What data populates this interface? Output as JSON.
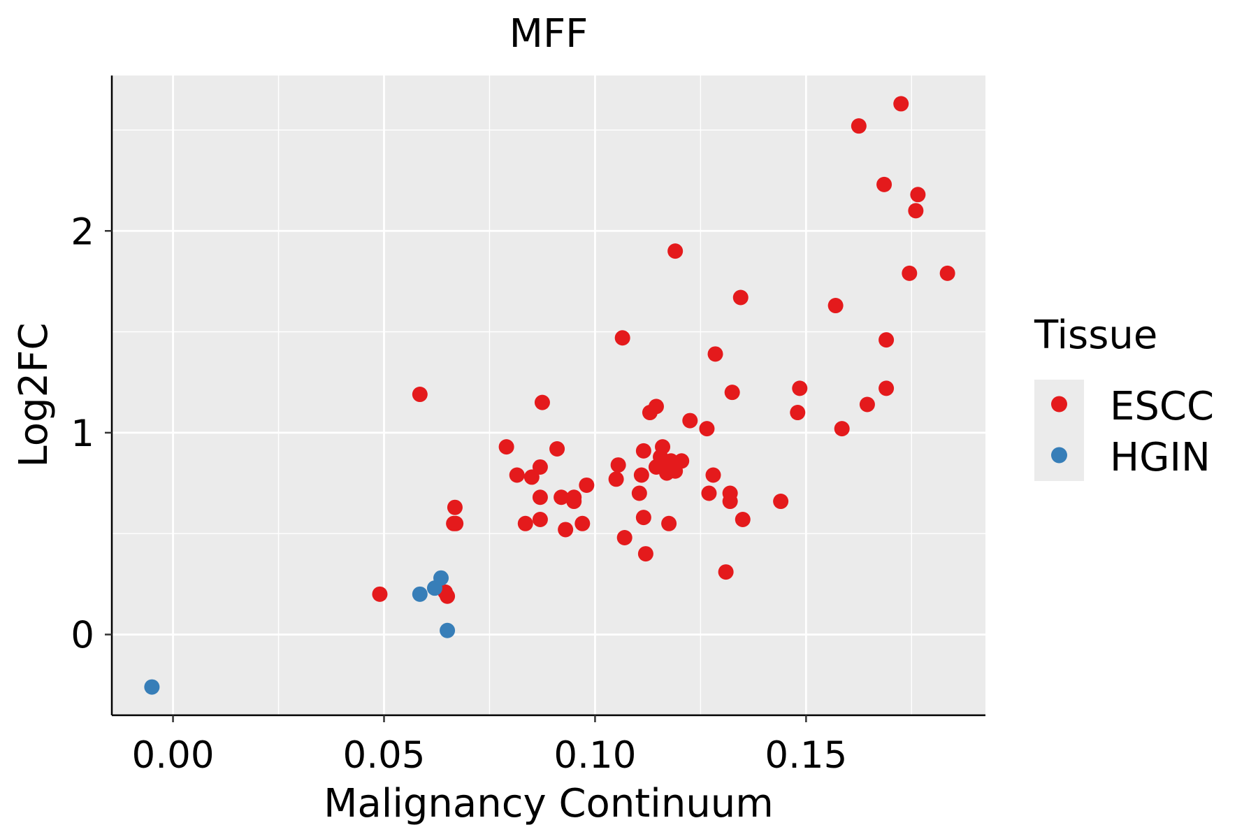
{
  "chart_data": {
    "type": "scatter",
    "title": "MFF",
    "xlabel": "Malignancy Continuum",
    "ylabel": "Log2FC",
    "xlim": [
      -0.0145,
      0.1925
    ],
    "ylim": [
      -0.4,
      2.77
    ],
    "x_ticks": [
      0.0,
      0.05,
      0.1,
      0.15
    ],
    "x_tick_labels": [
      "0.00",
      "0.05",
      "0.10",
      "0.15"
    ],
    "x_minor_ticks": [
      0.025,
      0.075,
      0.125,
      0.175
    ],
    "y_ticks": [
      0,
      1,
      2
    ],
    "y_tick_labels": [
      "0",
      "1",
      "2"
    ],
    "y_minor_ticks": [
      0.5,
      1.5,
      2.5
    ],
    "grid": true,
    "legend": {
      "title": "Tissue",
      "position": "right",
      "entries": [
        {
          "label": "ESCC",
          "color": "#e41a1c"
        },
        {
          "label": "HGIN",
          "color": "#377eb8"
        }
      ]
    },
    "colors": {
      "panel_background": "#ebebeb",
      "grid": "#ffffff",
      "axis": "#000000"
    },
    "series": [
      {
        "name": "ESCC",
        "color": "#e41a1c",
        "points": [
          [
            0.049,
            0.2
          ],
          [
            0.0585,
            1.19
          ],
          [
            0.0645,
            0.21
          ],
          [
            0.065,
            0.19
          ],
          [
            0.0668,
            0.63
          ],
          [
            0.067,
            0.55
          ],
          [
            0.0665,
            0.55
          ],
          [
            0.079,
            0.93
          ],
          [
            0.0815,
            0.79
          ],
          [
            0.0835,
            0.55
          ],
          [
            0.085,
            0.78
          ],
          [
            0.087,
            0.83
          ],
          [
            0.0875,
            1.15
          ],
          [
            0.087,
            0.68
          ],
          [
            0.087,
            0.57
          ],
          [
            0.091,
            0.92
          ],
          [
            0.092,
            0.68
          ],
          [
            0.093,
            0.52
          ],
          [
            0.095,
            0.68
          ],
          [
            0.095,
            0.66
          ],
          [
            0.097,
            0.55
          ],
          [
            0.098,
            0.74
          ],
          [
            0.105,
            0.77
          ],
          [
            0.1055,
            0.84
          ],
          [
            0.1065,
            1.47
          ],
          [
            0.107,
            0.48
          ],
          [
            0.1105,
            0.7
          ],
          [
            0.111,
            0.79
          ],
          [
            0.1115,
            0.58
          ],
          [
            0.1115,
            0.91
          ],
          [
            0.112,
            0.4
          ],
          [
            0.113,
            1.1
          ],
          [
            0.1145,
            1.13
          ],
          [
            0.1145,
            0.83
          ],
          [
            0.1155,
            0.88
          ],
          [
            0.116,
            0.93
          ],
          [
            0.1165,
            0.85
          ],
          [
            0.117,
            0.8
          ],
          [
            0.1175,
            0.55
          ],
          [
            0.118,
            0.86
          ],
          [
            0.119,
            0.81
          ],
          [
            0.119,
            1.9
          ],
          [
            0.1205,
            0.86
          ],
          [
            0.1225,
            1.06
          ],
          [
            0.1265,
            1.02
          ],
          [
            0.127,
            0.7
          ],
          [
            0.128,
            0.79
          ],
          [
            0.1285,
            1.39
          ],
          [
            0.131,
            0.31
          ],
          [
            0.132,
            0.7
          ],
          [
            0.132,
            0.66
          ],
          [
            0.1325,
            1.2
          ],
          [
            0.1345,
            1.67
          ],
          [
            0.135,
            0.57
          ],
          [
            0.144,
            0.66
          ],
          [
            0.148,
            1.1
          ],
          [
            0.1485,
            1.22
          ],
          [
            0.157,
            1.63
          ],
          [
            0.1585,
            1.02
          ],
          [
            0.1625,
            2.52
          ],
          [
            0.1645,
            1.14
          ],
          [
            0.1685,
            2.23
          ],
          [
            0.169,
            1.22
          ],
          [
            0.169,
            1.46
          ],
          [
            0.1725,
            2.63
          ],
          [
            0.1745,
            1.79
          ],
          [
            0.176,
            2.1
          ],
          [
            0.1765,
            2.18
          ],
          [
            0.1835,
            1.79
          ]
        ]
      },
      {
        "name": "HGIN",
        "color": "#377eb8",
        "points": [
          [
            -0.005,
            -0.26
          ],
          [
            0.0585,
            0.2
          ],
          [
            0.062,
            0.23
          ],
          [
            0.0635,
            0.28
          ],
          [
            0.065,
            0.02
          ]
        ]
      }
    ]
  }
}
